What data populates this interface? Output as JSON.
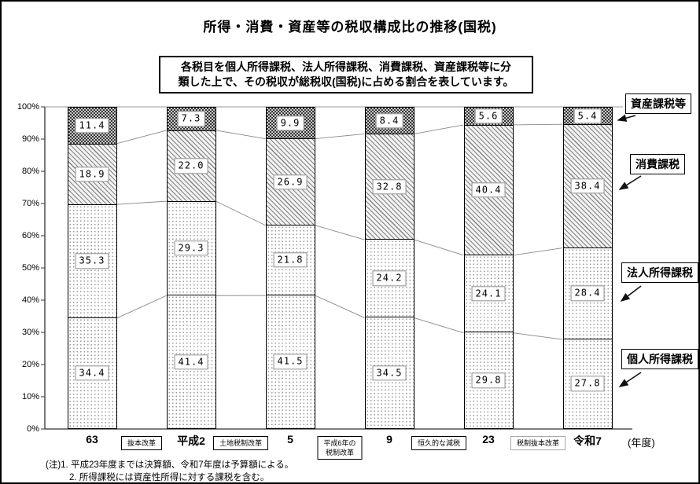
{
  "title": "所得・消費・資産等の税収構成比の推移(国税)",
  "info_box": {
    "line1": "各税目を個人所得課税、法人所得課税、消費課税、資産課税等に分",
    "line2": "類した上で、その税収が総税収(国税)に占める割合を表しています。"
  },
  "side_labels": [
    "資産課税等",
    "消費課税",
    "法人所得課税",
    "個人所得課税"
  ],
  "chart_data": {
    "type": "bar",
    "variant": "100%-stacked-column",
    "title": "所得・消費・資産等の税収構成比の推移(国税)",
    "categories": [
      "63",
      "平成2",
      "5",
      "9",
      "23",
      "令和7"
    ],
    "x_axis_unit": "(年度)",
    "y_ticks": [
      "0%",
      "10%",
      "20%",
      "30%",
      "40%",
      "50%",
      "60%",
      "70%",
      "80%",
      "90%",
      "100%"
    ],
    "ylim": [
      0,
      100
    ],
    "grid": false,
    "legend_position": "right",
    "series": [
      {
        "name": "個人所得課税",
        "pattern": "dots",
        "values": [
          34.4,
          41.4,
          41.5,
          34.5,
          29.8,
          27.8
        ]
      },
      {
        "name": "法人所得課税",
        "pattern": "dots",
        "values": [
          35.3,
          29.3,
          21.8,
          24.2,
          24.1,
          28.4
        ]
      },
      {
        "name": "消費課税",
        "pattern": "diag",
        "values": [
          18.9,
          22.0,
          26.9,
          32.8,
          40.4,
          38.4
        ]
      },
      {
        "name": "資産課税等",
        "pattern": "checker",
        "values": [
          11.4,
          7.3,
          9.9,
          8.4,
          5.6,
          5.4
        ]
      }
    ],
    "reform_events": [
      {
        "label": "抜本改革",
        "gap": 0,
        "style": "dark"
      },
      {
        "label": "土地税制改革",
        "gap": 1,
        "style": "dark"
      },
      {
        "label": "平成6年の\n税制改革",
        "gap": 2,
        "style": "dark"
      },
      {
        "label": "恒久的な減税",
        "gap": 3,
        "style": "dark"
      },
      {
        "label": "税制抜本改革",
        "gap": 4,
        "style": "light"
      }
    ]
  },
  "notes": {
    "line1": "(注)1. 平成23年度までは決算額、令和7年度は予算額による。",
    "line2": "2. 所得課税には資産性所得に対する課税を含む。"
  }
}
